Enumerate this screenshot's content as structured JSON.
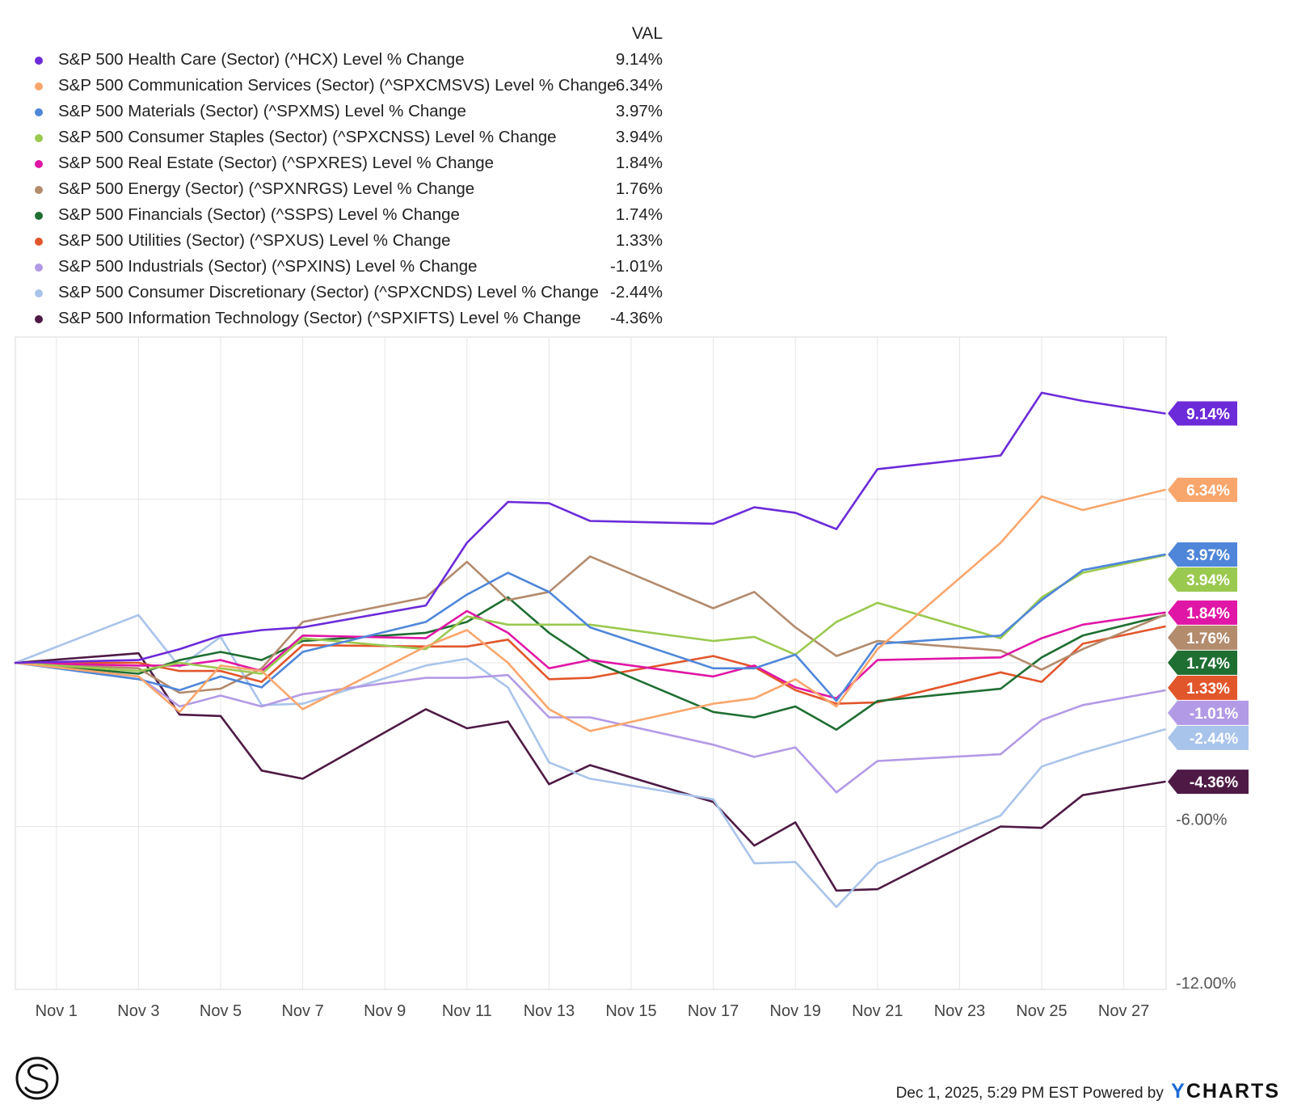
{
  "legend": {
    "val_header": "VAL"
  },
  "chart_data": {
    "type": "line",
    "title": "",
    "xlabel": "",
    "ylabel": "",
    "x": [
      "Oct 31",
      "Nov 3",
      "Nov 4",
      "Nov 5",
      "Nov 6",
      "Nov 7",
      "Nov 10",
      "Nov 11",
      "Nov 12",
      "Nov 13",
      "Nov 14",
      "Nov 17",
      "Nov 18",
      "Nov 19",
      "Nov 20",
      "Nov 21",
      "Nov 24",
      "Nov 25",
      "Nov 26",
      "Nov 28"
    ],
    "x_day_offsets": [
      0,
      3,
      4,
      5,
      6,
      7,
      10,
      11,
      12,
      13,
      14,
      17,
      18,
      19,
      20,
      21,
      24,
      25,
      26,
      28
    ],
    "x_ticks": [
      "Nov 1",
      "Nov 3",
      "Nov 5",
      "Nov 7",
      "Nov 9",
      "Nov 11",
      "Nov 13",
      "Nov 15",
      "Nov 17",
      "Nov 19",
      "Nov 21",
      "Nov 23",
      "Nov 25",
      "Nov 27"
    ],
    "x_tick_day_offsets": [
      1,
      3,
      5,
      7,
      9,
      11,
      13,
      15,
      17,
      19,
      21,
      23,
      25,
      27
    ],
    "y_ticks": [
      {
        "value": 6,
        "label": ""
      },
      {
        "value": 0,
        "label": ""
      },
      {
        "value": -6,
        "label": "-6.00%"
      },
      {
        "value": -12,
        "label": "-12.00%"
      }
    ],
    "ylim": [
      -12,
      12
    ],
    "series": [
      {
        "name": "S&P 500 Health Care (Sector) (^HCX) Level % Change",
        "value_label": "9.14%",
        "color": "#6c2bd9",
        "values": [
          0,
          0.1,
          0.5,
          1.0,
          1.2,
          1.3,
          2.1,
          4.4,
          5.9,
          5.85,
          5.2,
          5.1,
          5.7,
          5.5,
          4.9,
          7.1,
          7.6,
          9.9,
          9.6,
          9.14
        ]
      },
      {
        "name": "S&P 500 Communication Services (Sector) (^SPXCMSVS) Level % Change",
        "value_label": "6.34%",
        "color": "#f9a66c",
        "values": [
          0,
          -0.5,
          -1.8,
          -0.1,
          -0.3,
          -1.7,
          0.6,
          1.2,
          0,
          -1.7,
          -2.5,
          -1.5,
          -1.3,
          -0.6,
          -1.6,
          0.5,
          4.4,
          6.1,
          5.6,
          6.34
        ]
      },
      {
        "name": "S&P 500 Materials (Sector) (^SPXMS) Level % Change",
        "value_label": "3.97%",
        "color": "#4f86d9",
        "values": [
          0,
          -0.6,
          -1.0,
          -0.5,
          -0.9,
          0.4,
          1.5,
          2.5,
          3.3,
          2.6,
          1.3,
          -0.2,
          -0.2,
          0.3,
          -1.4,
          0.7,
          1.0,
          2.3,
          3.4,
          3.97
        ]
      },
      {
        "name": "S&P 500 Consumer Staples (Sector) (^SPXCNSS) Level % Change",
        "value_label": "3.94%",
        "color": "#9ac94f",
        "values": [
          0,
          -0.3,
          0,
          -0.2,
          -0.4,
          0.9,
          0.5,
          1.7,
          1.4,
          1.4,
          1.4,
          0.8,
          0.95,
          0.3,
          1.5,
          2.2,
          0.9,
          2.4,
          3.3,
          3.94
        ]
      },
      {
        "name": "S&P 500 Real Estate (Sector) (^SPXRES) Level % Change",
        "value_label": "1.84%",
        "color": "#e016a6",
        "values": [
          0,
          -0.1,
          -0.1,
          0.1,
          -0.3,
          1.0,
          0.9,
          1.9,
          1.1,
          -0.2,
          0.1,
          -0.5,
          -0.1,
          -0.9,
          -1.3,
          0.1,
          0.2,
          0.9,
          1.4,
          1.84
        ]
      },
      {
        "name": "S&P 500 Energy (Sector) (^SPXNRGS) Level % Change",
        "value_label": "1.76%",
        "color": "#b38b6d",
        "values": [
          0,
          -0.2,
          -1.1,
          -0.95,
          -0.2,
          1.5,
          2.4,
          3.7,
          2.3,
          2.6,
          3.9,
          2.0,
          2.6,
          1.3,
          0.25,
          0.8,
          0.45,
          -0.25,
          0.5,
          1.76
        ]
      },
      {
        "name": "S&P 500 Financials (Sector) (^SSPS) Level % Change",
        "value_label": "1.74%",
        "color": "#1f6e32",
        "values": [
          0,
          -0.4,
          0.1,
          0.4,
          0.1,
          0.8,
          1.1,
          1.5,
          2.4,
          1.1,
          0.1,
          -1.8,
          -2.0,
          -1.6,
          -2.45,
          -1.4,
          -0.95,
          0.2,
          1.0,
          1.74
        ]
      },
      {
        "name": "S&P 500 Utilities (Sector) (^SPXUS) Level % Change",
        "value_label": "1.33%",
        "color": "#e2562b",
        "values": [
          0,
          0,
          -0.3,
          -0.3,
          -0.7,
          0.65,
          0.6,
          0.6,
          0.85,
          -0.6,
          -0.55,
          0.25,
          -0.15,
          -1.0,
          -1.5,
          -1.45,
          -0.35,
          -0.7,
          0.7,
          1.33
        ]
      },
      {
        "name": "S&P 500 Industrials (Sector) (^SPXINS) Level % Change",
        "value_label": "-1.01%",
        "color": "#b39ae6",
        "values": [
          0,
          -0.5,
          -1.6,
          -1.2,
          -1.6,
          -1.15,
          -0.55,
          -0.55,
          -0.45,
          -2.0,
          -2.0,
          -3.0,
          -3.45,
          -3.1,
          -4.75,
          -3.6,
          -3.35,
          -2.1,
          -1.55,
          -1.01
        ]
      },
      {
        "name": "S&P 500 Consumer Discretionary (Sector) (^SPXCNDS) Level % Change",
        "value_label": "-2.44%",
        "color": "#a9c4ea",
        "values": [
          0,
          1.75,
          -0.15,
          0.95,
          -1.55,
          -1.5,
          -0.1,
          0.15,
          -0.9,
          -3.65,
          -4.25,
          -5.0,
          -7.35,
          -7.3,
          -8.95,
          -7.35,
          -5.6,
          -3.8,
          -3.3,
          -2.44
        ]
      },
      {
        "name": "S&P 500 Information Technology (Sector) (^SPXIFTS) Level % Change",
        "value_label": "-4.36%",
        "color": "#4e1a45",
        "values": [
          0,
          0.35,
          -1.9,
          -1.95,
          -3.95,
          -4.25,
          -1.7,
          -2.4,
          -2.15,
          -4.45,
          -3.75,
          -5.1,
          -6.7,
          -5.85,
          -8.35,
          -8.3,
          -6.0,
          -6.05,
          -4.85,
          -4.36
        ]
      }
    ]
  },
  "footer": {
    "timestamp": "Dec 1, 2025, 5:29 PM EST Powered by",
    "brand_y": "Y",
    "brand_rest": "CHARTS"
  }
}
